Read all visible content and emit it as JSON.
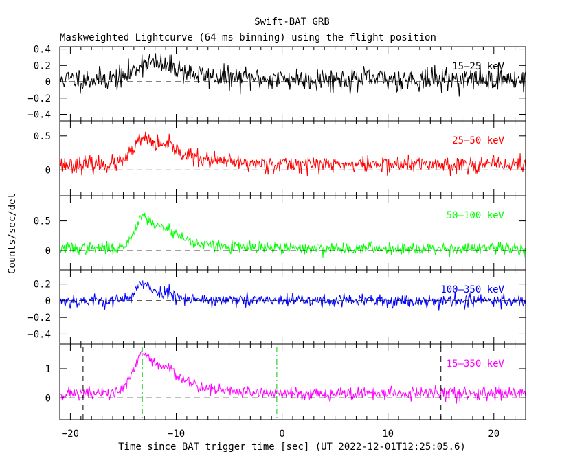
{
  "title": "Swift-BAT GRB",
  "subtitle": "Maskweighted Lightcurve (64 ms binning) using the flight position",
  "ylabel": "Counts/sec/det",
  "xlabel": "Time since BAT trigger time [sec] (UT 2022-12-01T12:25:05.6)",
  "chart_data": {
    "type": "line",
    "x_range": [
      -21,
      23
    ],
    "x_ticks": [
      -20,
      -10,
      0,
      10,
      20
    ],
    "x_tick_labels": [
      "−20",
      "−10",
      "0",
      "10",
      "20"
    ],
    "markers": {
      "t_peak_start": -13.2,
      "t_end": -0.5,
      "t_window_start": -18.8,
      "t_window_end": 15.0
    },
    "panels": [
      {
        "name": "15–25 keV",
        "color": "#000000",
        "ylim": [
          -0.48,
          0.43
        ],
        "y_ticks": [
          -0.4,
          -0.2,
          0,
          0.2,
          0.4
        ],
        "y_tick_labels": [
          "−0.4",
          "−0.2",
          "0",
          "0.2",
          "0.4"
        ],
        "curve": {
          "base": 0.03,
          "peak": 0.22,
          "peak_t": -12.6,
          "rise": 0.6,
          "decay": 3.0,
          "noise": 0.07,
          "seed": 11
        }
      },
      {
        "name": "25–50 keV",
        "color": "#ff0000",
        "ylim": [
          -0.38,
          0.72
        ],
        "y_ticks": [
          0,
          0.5
        ],
        "y_tick_labels": [
          "0",
          "0.5"
        ],
        "curve": {
          "base": 0.08,
          "peak": 0.38,
          "peak_t": -13.0,
          "rise": 0.5,
          "decay": 3.2,
          "noise": 0.06,
          "seed": 23
        }
      },
      {
        "name": "50–100 keV",
        "color": "#00ff00",
        "ylim": [
          -0.32,
          0.92
        ],
        "y_ticks": [
          0,
          0.5
        ],
        "y_tick_labels": [
          "0",
          "0.5"
        ],
        "curve": {
          "base": 0.04,
          "peak": 0.55,
          "peak_t": -13.1,
          "rise": 0.4,
          "decay": 2.5,
          "noise": 0.05,
          "seed": 37
        }
      },
      {
        "name": "100–350 keV",
        "color": "#0000ff",
        "ylim": [
          -0.52,
          0.37
        ],
        "y_ticks": [
          -0.4,
          -0.2,
          0,
          0.2
        ],
        "y_tick_labels": [
          "−0.4",
          "−0.2",
          "0",
          "0.2"
        ],
        "curve": {
          "base": 0.0,
          "peak": 0.2,
          "peak_t": -13.2,
          "rise": 0.35,
          "decay": 1.8,
          "noise": 0.04,
          "seed": 53
        }
      },
      {
        "name": "15–350 keV",
        "color": "#ff00ff",
        "ylim": [
          -0.75,
          1.85
        ],
        "y_ticks": [
          0,
          1
        ],
        "y_tick_labels": [
          "0",
          "1"
        ],
        "curve": {
          "base": 0.15,
          "peak": 1.35,
          "peak_t": -13.0,
          "rise": 0.5,
          "decay": 2.8,
          "noise": 0.11,
          "seed": 71
        }
      }
    ]
  }
}
